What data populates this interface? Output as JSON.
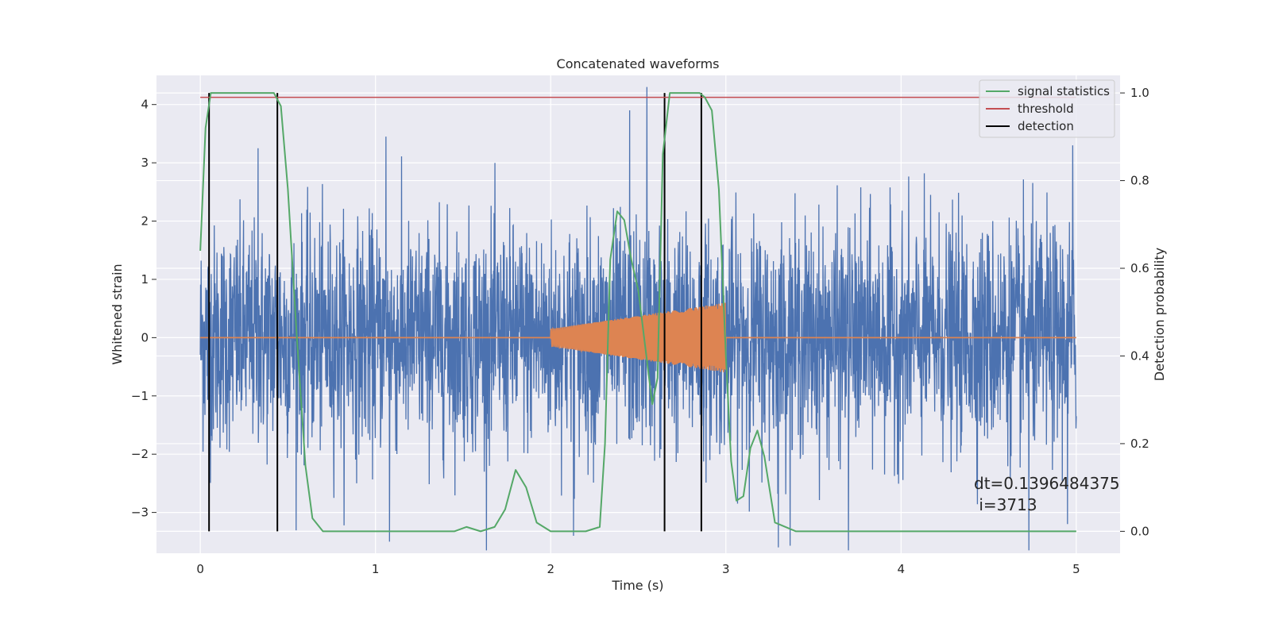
{
  "chart_data": {
    "type": "line",
    "title": "Concatenated waveforms",
    "xlabel": "Time (s)",
    "ylabel": "Whitened strain",
    "y2label": "Detection probability",
    "xlim": [
      -0.25,
      5.25
    ],
    "ylim": [
      -3.7,
      4.5
    ],
    "y2lim": [
      -0.05,
      1.04
    ],
    "x_ticks": [
      0,
      1,
      2,
      3,
      4,
      5
    ],
    "y_ticks": [
      -3,
      -2,
      -1,
      0,
      1,
      2,
      3,
      4
    ],
    "y2_ticks": [
      0.0,
      0.2,
      0.4,
      0.6,
      0.8,
      1.0
    ],
    "grid": true,
    "legend_position": "top-right",
    "legend": [
      {
        "label": "signal statistics",
        "color": "#55a868"
      },
      {
        "label": "threshold",
        "color": "#c44e52"
      },
      {
        "label": "detection",
        "color": "#000000"
      }
    ],
    "series": [
      {
        "role": "noise",
        "axis": "left",
        "color": "#4c72b0",
        "x_range": [
          0,
          5
        ],
        "envelope_upper": 2.3,
        "envelope_lower": -2.3,
        "extremes": [
          {
            "x": 2.55,
            "y": 4.3
          },
          {
            "x": 2.45,
            "y": 3.9
          },
          {
            "x": 4.98,
            "y": 3.3
          },
          {
            "x": 0.33,
            "y": 3.25
          },
          {
            "x": 2.65,
            "y": 3.4
          },
          {
            "x": 1.06,
            "y": 3.45
          },
          {
            "x": 3.7,
            "y": -3.65
          },
          {
            "x": 4.73,
            "y": -3.9
          },
          {
            "x": 1.08,
            "y": -3.5
          },
          {
            "x": 2.13,
            "y": -3.4
          },
          {
            "x": 3.3,
            "y": -3.6
          },
          {
            "x": 4.95,
            "y": -3.2
          }
        ]
      },
      {
        "role": "injected-signal",
        "axis": "left",
        "color": "#dd8452",
        "x_start": 2.0,
        "x_end": 3.0,
        "amplitude_start": 0.15,
        "amplitude_end": 0.6
      },
      {
        "name": "signal statistics",
        "axis": "right",
        "color": "#55a868",
        "x": [
          0,
          0.03,
          0.06,
          0.1,
          0.2,
          0.35,
          0.42,
          0.46,
          0.5,
          0.55,
          0.6,
          0.64,
          0.7,
          0.9,
          1.3,
          1.45,
          1.52,
          1.6,
          1.68,
          1.74,
          1.8,
          1.86,
          1.92,
          2.0,
          2.2,
          2.28,
          2.31,
          2.34,
          2.38,
          2.42,
          2.46,
          2.5,
          2.54,
          2.58,
          2.61,
          2.64,
          2.68,
          2.72,
          2.8,
          2.85,
          2.88,
          2.92,
          2.96,
          3.0,
          3.03,
          3.06,
          3.1,
          3.14,
          3.18,
          3.22,
          3.28,
          3.4,
          4.0,
          5.0
        ],
        "y": [
          0.64,
          0.92,
          1.0,
          1.0,
          1.0,
          1.0,
          1.0,
          0.97,
          0.78,
          0.45,
          0.15,
          0.03,
          0.0,
          0.0,
          0.0,
          0.0,
          0.01,
          0.0,
          0.01,
          0.05,
          0.14,
          0.1,
          0.02,
          0.0,
          0.0,
          0.01,
          0.2,
          0.62,
          0.73,
          0.71,
          0.62,
          0.55,
          0.42,
          0.29,
          0.35,
          0.86,
          1.0,
          1.0,
          1.0,
          1.0,
          0.99,
          0.96,
          0.78,
          0.4,
          0.16,
          0.07,
          0.08,
          0.19,
          0.23,
          0.17,
          0.02,
          0.0,
          0.0,
          0.0
        ]
      },
      {
        "name": "threshold",
        "axis": "right",
        "color": "#c44e52",
        "x": [
          0,
          5
        ],
        "y": [
          0.99,
          0.99
        ]
      }
    ],
    "detections": [
      0.05,
      0.44,
      2.65,
      2.86
    ],
    "annotation": {
      "line1": "dt=0.1396484375",
      "line2": " i=3713",
      "x": 4.5,
      "y2": 0.1
    }
  }
}
